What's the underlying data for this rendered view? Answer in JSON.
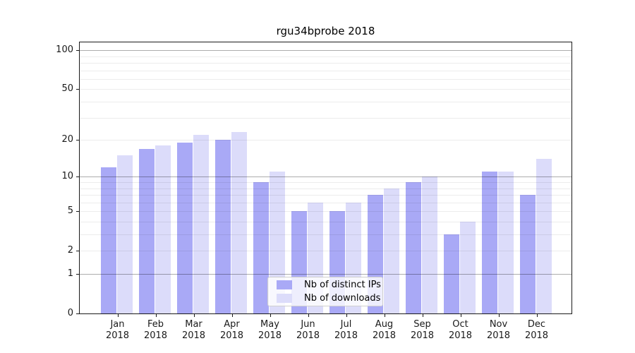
{
  "title": "rgu34bprobe 2018",
  "chart_data": {
    "type": "bar",
    "title": "rgu34bprobe 2018",
    "categories": [
      "Jan 2018",
      "Feb 2018",
      "Mar 2018",
      "Apr 2018",
      "May 2018",
      "Jun 2018",
      "Jul 2018",
      "Aug 2018",
      "Sep 2018",
      "Oct 2018",
      "Nov 2018",
      "Dec 2018"
    ],
    "series": [
      {
        "name": "Nb of distinct IPs",
        "color": "#a9a9f6",
        "values": [
          12,
          17,
          19,
          20,
          9,
          5,
          5,
          7,
          9,
          3,
          11,
          7
        ]
      },
      {
        "name": "Nb of downloads",
        "color": "#dcdcfa",
        "values": [
          15,
          18,
          22,
          23,
          11,
          6,
          6,
          8,
          10,
          4,
          11,
          14
        ]
      }
    ],
    "xlabel": "",
    "ylabel": "",
    "y_scale": "log1p",
    "ylim": [
      0,
      115
    ],
    "y_ticks": [
      0,
      1,
      2,
      5,
      10,
      20,
      50,
      100
    ],
    "grid": true,
    "grid_major_values": [
      1,
      10,
      100
    ],
    "grid_minor_values": [
      2,
      3,
      4,
      5,
      6,
      7,
      8,
      9,
      20,
      30,
      40,
      50,
      60,
      70,
      80,
      90
    ],
    "grid_major_color": "#b3b3b3",
    "grid_minor_color": "#ededed",
    "legend_position": "lower center"
  }
}
